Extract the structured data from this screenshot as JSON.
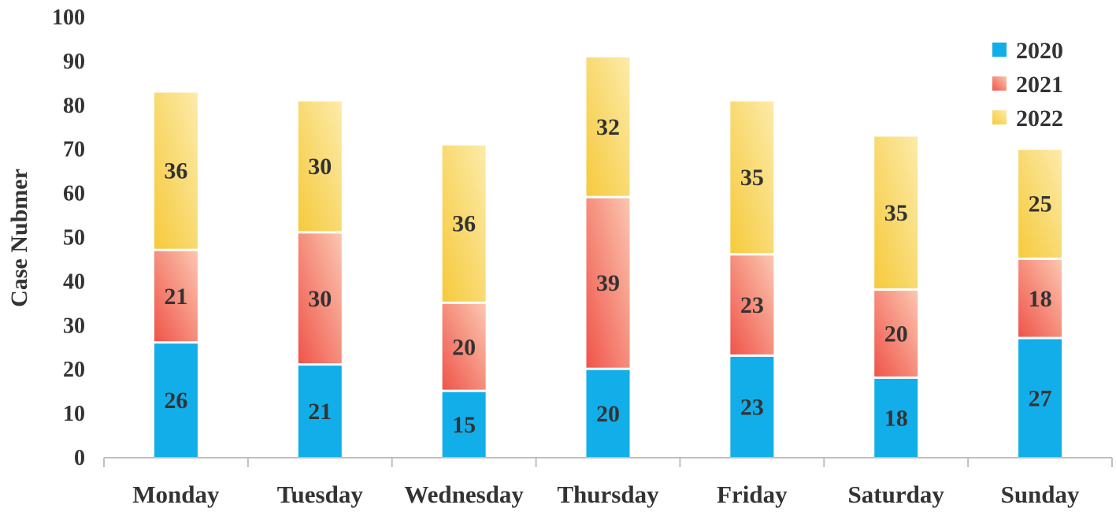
{
  "chart_data": {
    "type": "bar",
    "stacked": true,
    "categories": [
      "Monday",
      "Tuesday",
      "Wednesday",
      "Thursday",
      "Friday",
      "Saturday",
      "Sunday"
    ],
    "series": [
      {
        "name": "2020",
        "values": [
          26,
          21,
          15,
          20,
          23,
          18,
          27
        ],
        "color": "#12AEEA"
      },
      {
        "name": "2021",
        "values": [
          21,
          30,
          20,
          39,
          23,
          20,
          18
        ],
        "color": "#F0544A",
        "gradient_to": "#FBC7B0"
      },
      {
        "name": "2022",
        "values": [
          36,
          30,
          36,
          32,
          35,
          35,
          25
        ],
        "color": "#F6CA3C",
        "gradient_to": "#FCEBAA"
      }
    ],
    "ylabel": "Case Nubmer",
    "xlabel": "",
    "ylim": [
      0,
      100
    ],
    "yticks": [
      "0",
      "10",
      "20",
      "30",
      "40",
      "50",
      "60",
      "70",
      "80",
      "90",
      "100"
    ],
    "legend_position": "top-right",
    "grid": false
  }
}
